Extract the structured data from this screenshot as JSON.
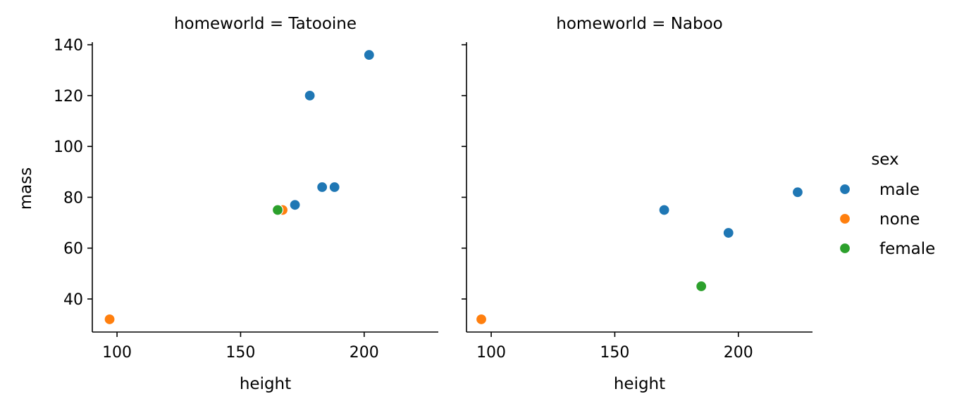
{
  "chart_data": {
    "type": "scatter",
    "xlabel": "height",
    "ylabel": "mass",
    "xlim": [
      90,
      230
    ],
    "ylim": [
      27,
      141
    ],
    "x_ticks": [
      100,
      150,
      200
    ],
    "y_ticks": [
      40,
      60,
      80,
      100,
      120,
      140
    ],
    "grid": false,
    "sharey": true,
    "legend": {
      "title": "sex",
      "placement": "right",
      "entries": [
        {
          "label": "male",
          "color": "#1f77b4"
        },
        {
          "label": "none",
          "color": "#ff7f0e"
        },
        {
          "label": "female",
          "color": "#2ca02c"
        }
      ]
    },
    "facets": [
      {
        "title": "homeworld = Tatooine",
        "points": [
          {
            "x": 202,
            "y": 136,
            "sex": "male"
          },
          {
            "x": 178,
            "y": 120,
            "sex": "male"
          },
          {
            "x": 183,
            "y": 84,
            "sex": "male"
          },
          {
            "x": 188,
            "y": 84,
            "sex": "male"
          },
          {
            "x": 172,
            "y": 77,
            "sex": "male"
          },
          {
            "x": 167,
            "y": 75,
            "sex": "none"
          },
          {
            "x": 165,
            "y": 75,
            "sex": "female"
          },
          {
            "x": 97,
            "y": 32,
            "sex": "none"
          }
        ]
      },
      {
        "title": "homeworld = Naboo",
        "points": [
          {
            "x": 224,
            "y": 82,
            "sex": "male"
          },
          {
            "x": 170,
            "y": 75,
            "sex": "male"
          },
          {
            "x": 196,
            "y": 66,
            "sex": "male"
          },
          {
            "x": 185,
            "y": 45,
            "sex": "female"
          },
          {
            "x": 96,
            "y": 32,
            "sex": "none"
          }
        ]
      }
    ]
  }
}
